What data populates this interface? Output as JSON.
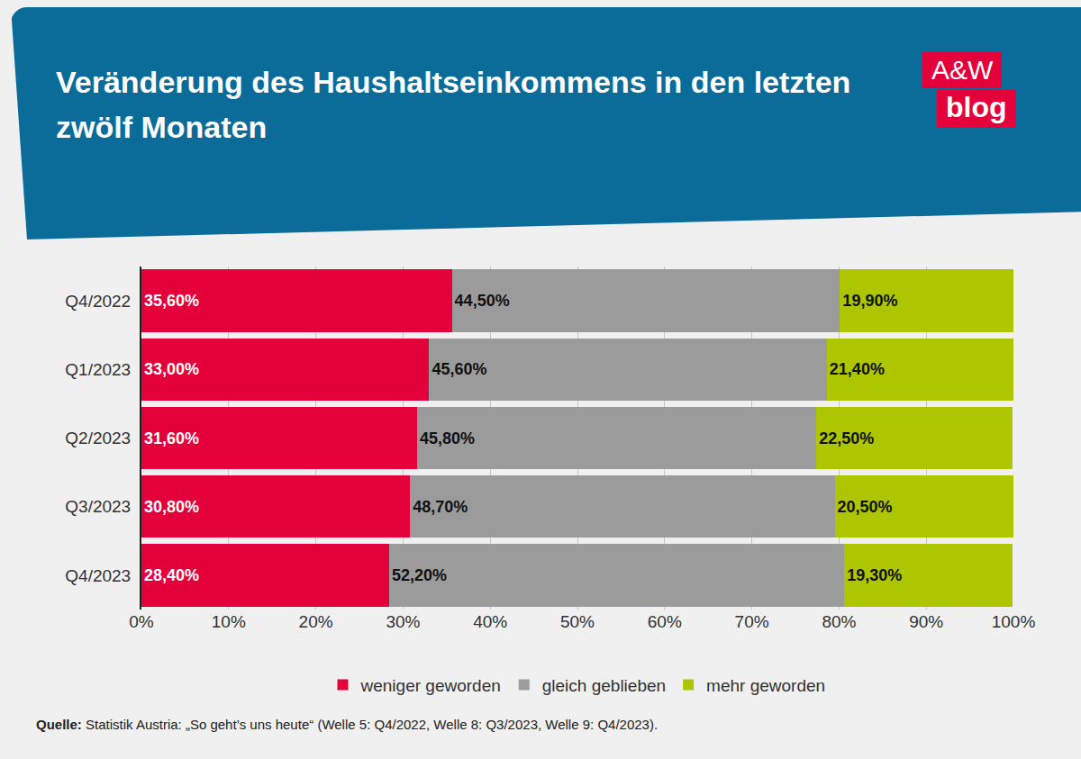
{
  "chart_data": {
    "type": "bar",
    "title": "Veränderung des Haushaltseinkommens in den letzten zwölf Monaten",
    "annotations": [
      "A&W",
      "blog",
      "Quelle: Statistik Austria: „So geht’s uns heute“ (Welle 5: Q4/2022, Welle 8: Q3/2023, Welle 9: Q4/2023)."
    ],
    "categories": [
      "Q4/2022",
      "Q1/2023",
      "Q2/2023",
      "Q3/2023",
      "Q4/2023"
    ],
    "series": [
      {
        "name": "weniger geworden",
        "color": "#e4003a",
        "values": [
          35.6,
          33.0,
          31.6,
          30.8,
          28.4
        ],
        "value_labels": [
          "35,60%",
          "33,00%",
          "31,60%",
          "30,80%",
          "28,40%"
        ]
      },
      {
        "name": "gleich geblieben",
        "color": "#9b9b9b",
        "values": [
          44.5,
          45.6,
          45.8,
          48.7,
          52.2
        ],
        "value_labels": [
          "44,50%",
          "45,60%",
          "45,80%",
          "48,70%",
          "52,20%"
        ]
      },
      {
        "name": "mehr geworden",
        "color": "#adc600",
        "values": [
          19.9,
          21.4,
          22.5,
          20.5,
          19.3
        ],
        "value_labels": [
          "19,90%",
          "21,40%",
          "22,50%",
          "20,50%",
          "19,30%"
        ]
      }
    ],
    "xlim": [
      0,
      100
    ],
    "xticks": [
      {
        "value": 0,
        "label": "0%"
      },
      {
        "value": 10,
        "label": "10%"
      },
      {
        "value": 20,
        "label": "20%"
      },
      {
        "value": 30,
        "label": "30%"
      },
      {
        "value": 40,
        "label": "40%"
      },
      {
        "value": 50,
        "label": "50%"
      },
      {
        "value": 60,
        "label": "60%"
      },
      {
        "value": 70,
        "label": "70%"
      },
      {
        "value": 80,
        "label": "80%"
      },
      {
        "value": 90,
        "label": "90%"
      },
      {
        "value": 100,
        "label": "100%"
      }
    ],
    "orientation": "horizontal",
    "stacked": true,
    "data_labels": true,
    "grid": true,
    "legend": "bottom"
  }
}
